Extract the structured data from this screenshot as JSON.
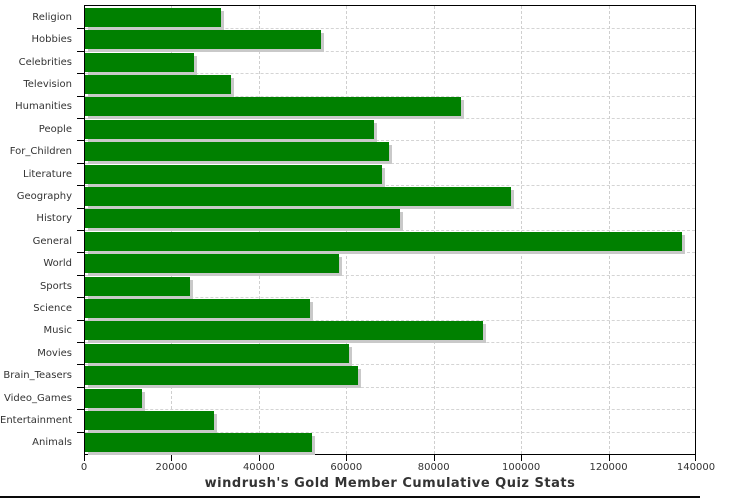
{
  "chart_data": {
    "type": "bar",
    "orientation": "horizontal",
    "title": "windrush's Gold Member Cumulative Quiz Stats",
    "categories": [
      "Religion",
      "Hobbies",
      "Celebrities",
      "Television",
      "Humanities",
      "People",
      "For_Children",
      "Literature",
      "Geography",
      "History",
      "General",
      "World",
      "Sports",
      "Science",
      "Music",
      "Movies",
      "Brain_Teasers",
      "Video_Games",
      "Entertainment",
      "Animals"
    ],
    "values": [
      31000,
      54000,
      25000,
      33500,
      86000,
      66000,
      69500,
      68000,
      97500,
      72000,
      136500,
      58000,
      24000,
      51500,
      91000,
      60500,
      62500,
      13000,
      29500,
      52000
    ],
    "xlim": [
      0,
      140000
    ],
    "x_ticks": [
      0,
      20000,
      40000,
      60000,
      80000,
      100000,
      120000,
      140000
    ],
    "x_tick_labels": [
      "0",
      "20000",
      "40000",
      "60000",
      "80000",
      "100000",
      "120000",
      "140000"
    ],
    "grid": "dashed",
    "legend": "none",
    "colors": {
      "bar": "#008000",
      "bar_shadow": "#c9c9c9",
      "gridline": "#d0d0d0",
      "axis": "#000000",
      "text": "#333333"
    }
  }
}
